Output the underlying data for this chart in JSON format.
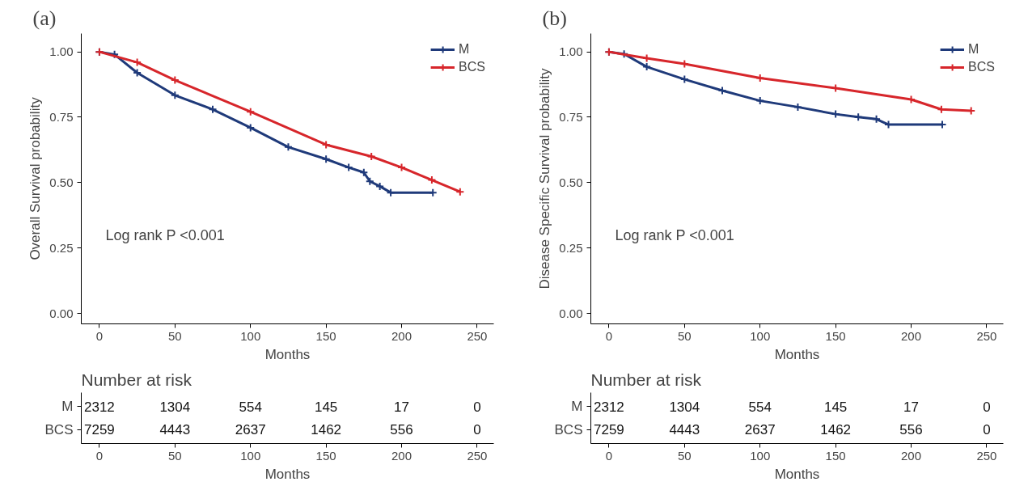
{
  "chart_data": [
    {
      "type": "line",
      "title": "(a)",
      "xlabel": "Months",
      "ylabel": "Overall Survival probability",
      "annotations": [
        "Log rank P <0.001"
      ],
      "xlim": [
        -12,
        261
      ],
      "xticks": [
        0,
        50,
        100,
        150,
        200,
        250
      ],
      "ylim": [
        -0.04,
        1.07
      ],
      "yticks": [
        {
          "value": 0,
          "label": "0.00"
        },
        {
          "value": 0.25,
          "label": "0.25"
        },
        {
          "value": 0.5,
          "label": "0.50"
        },
        {
          "value": 0.75,
          "label": "0.75"
        },
        {
          "value": 1,
          "label": "1.00"
        }
      ],
      "grid": false,
      "legend": "top right",
      "marker": "cross",
      "line_style": "solid",
      "series": [
        {
          "name": "M",
          "color": "#1f3a7a",
          "x": [
            0,
            10,
            25,
            50,
            75,
            100,
            125,
            150,
            165,
            175,
            179,
            185.6,
            192.8,
            220.7
          ],
          "values": [
            1.0,
            0.99,
            0.92,
            0.834,
            0.78,
            0.71,
            0.636,
            0.59,
            0.558,
            0.539,
            0.505,
            0.486,
            0.462,
            0.462
          ]
        },
        {
          "name": "BCS",
          "color": "#d7262b",
          "x": [
            0,
            25,
            50,
            100,
            150,
            180,
            200,
            220,
            238.7
          ],
          "values": [
            1.0,
            0.96,
            0.892,
            0.771,
            0.645,
            0.6,
            0.558,
            0.51,
            0.465
          ]
        }
      ]
    },
    {
      "type": "heatmap",
      "title": "Number at risk",
      "xlabel": "Months",
      "data_labels": true,
      "categories": [
        "0",
        "50",
        "100",
        "150",
        "200",
        "250"
      ],
      "y_categories": [
        "M",
        "BCS"
      ],
      "cells": [
        [
          2312,
          1304,
          554,
          145,
          17,
          0
        ],
        [
          7259,
          4443,
          2637,
          1462,
          556,
          0
        ]
      ]
    },
    {
      "type": "line",
      "title": "(b)",
      "xlabel": "Months",
      "ylabel": "Disease Specific Survival probability",
      "annotations": [
        "Log rank P <0.001"
      ],
      "xlim": [
        -12,
        261
      ],
      "xticks": [
        0,
        50,
        100,
        150,
        200,
        250
      ],
      "ylim": [
        -0.04,
        1.07
      ],
      "yticks": [
        {
          "value": 0,
          "label": "0.00"
        },
        {
          "value": 0.25,
          "label": "0.25"
        },
        {
          "value": 0.5,
          "label": "0.50"
        },
        {
          "value": 0.75,
          "label": "0.75"
        },
        {
          "value": 1,
          "label": "1.00"
        }
      ],
      "grid": false,
      "legend": "top right",
      "marker": "cross",
      "line_style": "solid",
      "series": [
        {
          "name": "M",
          "color": "#1f3a7a",
          "x": [
            0,
            10,
            25,
            50,
            75,
            100,
            125,
            150,
            165,
            177,
            185,
            220.6
          ],
          "values": [
            1.0,
            0.992,
            0.943,
            0.895,
            0.852,
            0.813,
            0.789,
            0.762,
            0.751,
            0.743,
            0.722,
            0.722
          ]
        },
        {
          "name": "BCS",
          "color": "#d7262b",
          "x": [
            0,
            25,
            50,
            100,
            150,
            200,
            220,
            239.7
          ],
          "values": [
            1.0,
            0.976,
            0.954,
            0.9,
            0.861,
            0.818,
            0.78,
            0.775
          ]
        }
      ]
    },
    {
      "type": "heatmap",
      "title": "Number at risk",
      "xlabel": "Months",
      "data_labels": true,
      "categories": [
        "0",
        "50",
        "100",
        "150",
        "200",
        "250"
      ],
      "y_categories": [
        "M",
        "BCS"
      ],
      "cells": [
        [
          2312,
          1304,
          554,
          145,
          17,
          0
        ],
        [
          7259,
          4443,
          2637,
          1462,
          556,
          0
        ]
      ]
    }
  ]
}
